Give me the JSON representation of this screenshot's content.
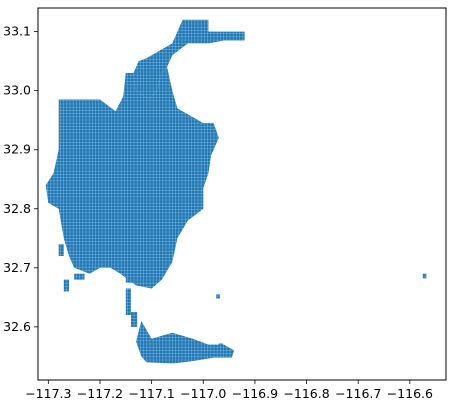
{
  "chart_data": {
    "type": "map",
    "title": "",
    "xlabel": "",
    "ylabel": "",
    "xlim": [
      -117.32,
      -116.53
    ],
    "ylim": [
      32.51,
      33.14
    ],
    "x_ticks": [
      {
        "value": -117.3,
        "label": "−117.3"
      },
      {
        "value": -117.2,
        "label": "−117.2"
      },
      {
        "value": -117.1,
        "label": "−117.1"
      },
      {
        "value": -117.0,
        "label": "−117.0"
      },
      {
        "value": -116.9,
        "label": "−116.9"
      },
      {
        "value": -116.8,
        "label": "−116.8"
      },
      {
        "value": -116.7,
        "label": "−116.7"
      },
      {
        "value": -116.6,
        "label": "−116.6"
      }
    ],
    "y_ticks": [
      {
        "value": 32.6,
        "label": "32.6"
      },
      {
        "value": 32.7,
        "label": "32.7"
      },
      {
        "value": 32.8,
        "label": "32.8"
      },
      {
        "value": 32.9,
        "label": "32.9"
      },
      {
        "value": 33.0,
        "label": "33.0"
      },
      {
        "value": 33.1,
        "label": "33.1"
      }
    ],
    "fill_color": "#1f77b4",
    "grid": false,
    "polygons": [
      {
        "name": "north-arm",
        "coords": [
          [
            -117.04,
            33.12
          ],
          [
            -116.99,
            33.12
          ],
          [
            -116.99,
            33.1
          ],
          [
            -116.92,
            33.1
          ],
          [
            -116.92,
            33.085
          ],
          [
            -116.96,
            33.085
          ],
          [
            -116.99,
            33.08
          ],
          [
            -117.03,
            33.08
          ],
          [
            -117.06,
            33.06
          ],
          [
            -117.07,
            33.04
          ],
          [
            -117.08,
            33.03
          ],
          [
            -117.09,
            33.0
          ],
          [
            -117.105,
            32.985
          ],
          [
            -117.13,
            33.0
          ],
          [
            -117.135,
            33.03
          ],
          [
            -117.125,
            33.05
          ],
          [
            -117.11,
            33.055
          ],
          [
            -117.09,
            33.065
          ],
          [
            -117.06,
            33.08
          ]
        ]
      },
      {
        "name": "main-body",
        "coords": [
          [
            -117.28,
            32.985
          ],
          [
            -117.2,
            32.985
          ],
          [
            -117.17,
            32.965
          ],
          [
            -117.155,
            32.99
          ],
          [
            -117.15,
            33.03
          ],
          [
            -117.135,
            33.03
          ],
          [
            -117.13,
            33.0
          ],
          [
            -117.105,
            32.985
          ],
          [
            -117.09,
            33.0
          ],
          [
            -117.08,
            33.03
          ],
          [
            -117.07,
            33.04
          ],
          [
            -117.06,
            33.0
          ],
          [
            -117.05,
            32.97
          ],
          [
            -117.03,
            32.96
          ],
          [
            -117.0,
            32.945
          ],
          [
            -116.98,
            32.945
          ],
          [
            -116.97,
            32.92
          ],
          [
            -116.985,
            32.89
          ],
          [
            -116.99,
            32.86
          ],
          [
            -117.0,
            32.835
          ],
          [
            -117.0,
            32.8
          ],
          [
            -117.03,
            32.78
          ],
          [
            -117.05,
            32.75
          ],
          [
            -117.06,
            32.71
          ],
          [
            -117.08,
            32.68
          ],
          [
            -117.1,
            32.665
          ],
          [
            -117.13,
            32.67
          ],
          [
            -117.16,
            32.69
          ],
          [
            -117.18,
            32.7
          ],
          [
            -117.2,
            32.7
          ],
          [
            -117.22,
            32.69
          ],
          [
            -117.25,
            32.7
          ],
          [
            -117.26,
            32.72
          ],
          [
            -117.27,
            32.75
          ],
          [
            -117.28,
            32.8
          ],
          [
            -117.3,
            32.81
          ],
          [
            -117.305,
            32.84
          ],
          [
            -117.29,
            32.86
          ],
          [
            -117.28,
            32.9
          ]
        ]
      },
      {
        "name": "south-bay",
        "coords": [
          [
            -117.12,
            32.61
          ],
          [
            -117.1,
            32.58
          ],
          [
            -117.06,
            32.59
          ],
          [
            -117.02,
            32.58
          ],
          [
            -116.99,
            32.57
          ],
          [
            -116.96,
            32.57
          ],
          [
            -116.94,
            32.56
          ],
          [
            -116.945,
            32.548
          ],
          [
            -116.98,
            32.548
          ],
          [
            -117.02,
            32.542
          ],
          [
            -117.06,
            32.538
          ],
          [
            -117.11,
            32.54
          ],
          [
            -117.12,
            32.55
          ],
          [
            -117.13,
            32.575
          ]
        ]
      },
      {
        "name": "strip-1",
        "coords": [
          [
            -117.15,
            32.665
          ],
          [
            -117.14,
            32.665
          ],
          [
            -117.14,
            32.62
          ],
          [
            -117.15,
            32.62
          ]
        ]
      },
      {
        "name": "strip-2",
        "coords": [
          [
            -117.14,
            32.625
          ],
          [
            -117.128,
            32.625
          ],
          [
            -117.128,
            32.6
          ],
          [
            -117.14,
            32.6
          ]
        ]
      },
      {
        "name": "patch-left-1",
        "coords": [
          [
            -117.27,
            32.68
          ],
          [
            -117.26,
            32.68
          ],
          [
            -117.26,
            32.66
          ],
          [
            -117.27,
            32.66
          ]
        ]
      },
      {
        "name": "patch-left-2",
        "coords": [
          [
            -117.28,
            32.74
          ],
          [
            -117.27,
            32.74
          ],
          [
            -117.27,
            32.72
          ],
          [
            -117.28,
            32.72
          ]
        ]
      },
      {
        "name": "patch-left-3",
        "coords": [
          [
            -117.25,
            32.69
          ],
          [
            -117.23,
            32.69
          ],
          [
            -117.23,
            32.68
          ],
          [
            -117.25,
            32.68
          ]
        ]
      },
      {
        "name": "patch-center",
        "coords": [
          [
            -117.15,
            32.69
          ],
          [
            -117.13,
            32.69
          ],
          [
            -117.13,
            32.675
          ],
          [
            -117.15,
            32.675
          ]
        ]
      },
      {
        "name": "dot-1",
        "coords": [
          [
            -116.975,
            32.655
          ],
          [
            -116.968,
            32.655
          ],
          [
            -116.968,
            32.648
          ],
          [
            -116.975,
            32.648
          ]
        ]
      },
      {
        "name": "dot-2",
        "coords": [
          [
            -116.97,
            32.572
          ],
          [
            -116.962,
            32.572
          ],
          [
            -116.962,
            32.563
          ],
          [
            -116.97,
            32.563
          ]
        ]
      },
      {
        "name": "dot-far-east",
        "coords": [
          [
            -116.575,
            32.69
          ],
          [
            -116.568,
            32.69
          ],
          [
            -116.568,
            32.682
          ],
          [
            -116.575,
            32.682
          ]
        ]
      }
    ]
  }
}
